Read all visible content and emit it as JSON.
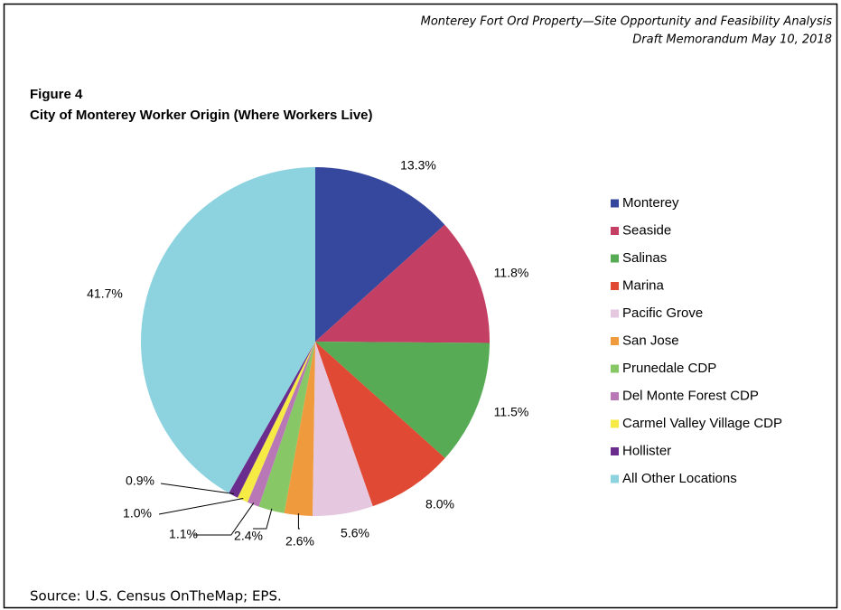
{
  "header": {
    "line1": "Monterey Fort Ord Property—Site Opportunity and Feasibility Analysis",
    "line2": "Draft Memorandum  May 10, 2018"
  },
  "figure_label": "Figure 4",
  "source": "Source:  U.S. Census OnTheMap; EPS.",
  "chart_data": {
    "type": "pie",
    "title": "City of Monterey Worker Origin (Where Workers Live)",
    "categories": [
      "Monterey",
      "Seaside",
      "Salinas",
      "Marina",
      "Pacific Grove",
      "San Jose",
      "Prunedale CDP",
      "Del Monte Forest CDP",
      "Carmel Valley Village CDP",
      "Hollister",
      "All Other Locations"
    ],
    "values": [
      13.3,
      11.8,
      11.5,
      8.0,
      5.6,
      2.6,
      2.4,
      1.1,
      1.0,
      0.9,
      41.7
    ],
    "value_labels": [
      "13.3%",
      "11.8%",
      "11.5%",
      "8.0%",
      "5.6%",
      "2.6%",
      "2.4%",
      "1.1%",
      "1.0%",
      "0.9%",
      "41.7%"
    ],
    "colors": [
      "#35489e",
      "#c43f64",
      "#57ab55",
      "#e04a34",
      "#e6c7e0",
      "#ee9a3d",
      "#88c766",
      "#b878b6",
      "#f6ea45",
      "#6a2d8e",
      "#8dd3df"
    ],
    "legend": "right"
  }
}
